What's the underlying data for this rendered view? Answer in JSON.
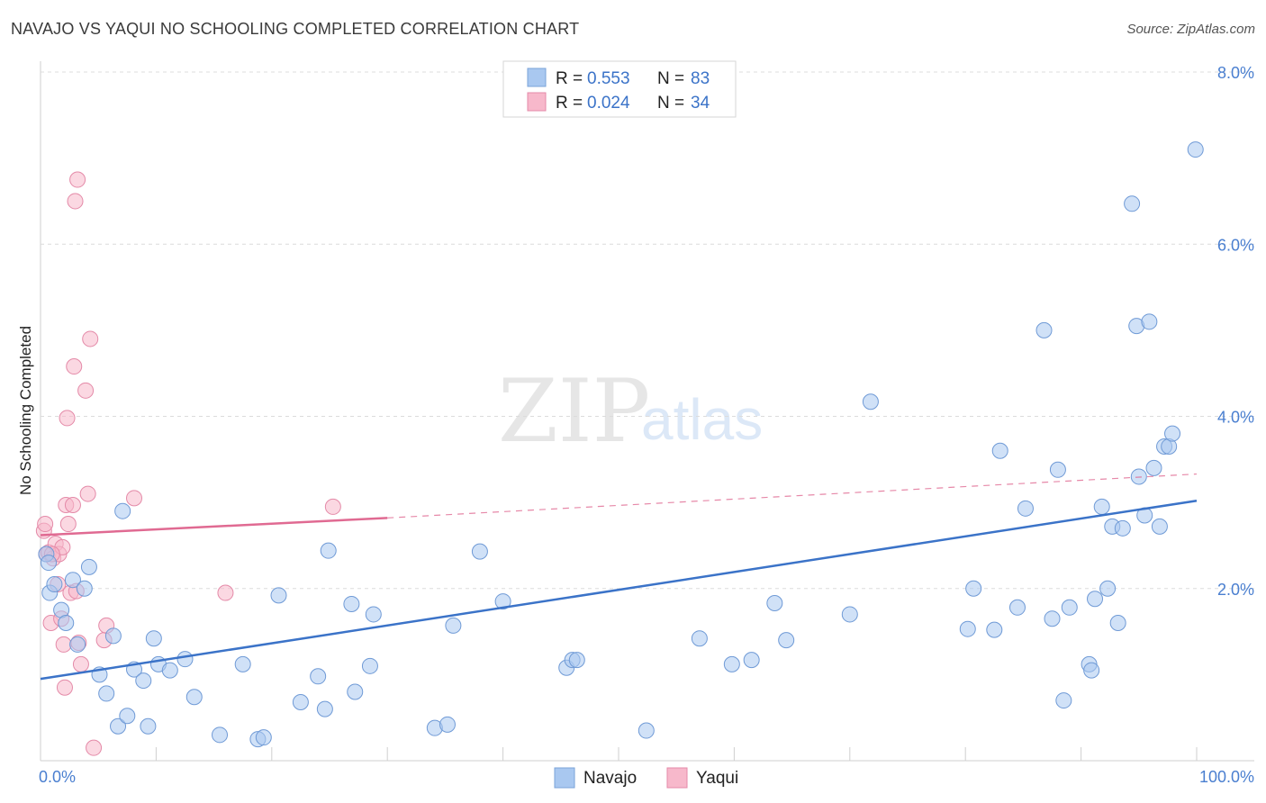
{
  "header": {
    "title": "NAVAJO VS YAQUI NO SCHOOLING COMPLETED CORRELATION CHART",
    "source": "Source: ZipAtlas.com"
  },
  "watermark": {
    "part1": "ZIP",
    "part2": "atlas"
  },
  "legend_top": {
    "rows": [
      {
        "r_label": "R = ",
        "r_value": "0.553",
        "n_label": "N = ",
        "n_value": "83",
        "color": "#a9c8f0"
      },
      {
        "r_label": "R = ",
        "r_value": "0.024",
        "n_label": "N = ",
        "n_value": "34",
        "color": "#f7b8cb"
      }
    ]
  },
  "legend_bottom": {
    "items": [
      "Navajo",
      "Yaqui"
    ]
  },
  "chart_data": {
    "type": "scatter",
    "title": "NAVAJO VS YAQUI NO SCHOOLING COMPLETED CORRELATION CHART",
    "xlabel": "",
    "ylabel": "No Schooling Completed",
    "xlim": [
      0,
      100
    ],
    "ylim": [
      0,
      8.0
    ],
    "x_tick_labels": {
      "left": "0.0%",
      "right": "100.0%"
    },
    "y_ticks": [
      2.0,
      4.0,
      6.0,
      8.0
    ],
    "y_tick_labels": [
      "2.0%",
      "4.0%",
      "6.0%",
      "8.0%"
    ],
    "grid": "horizontal dashed",
    "legend_position": "top-center",
    "colors": {
      "navajo": "#3b73c8",
      "navajo_fill": "#a9c8f0",
      "yaqui": "#e06a92",
      "yaqui_fill": "#f7b8cb"
    },
    "series": [
      {
        "name": "Navajo",
        "trend": {
          "x": [
            0,
            100
          ],
          "y": [
            0.95,
            3.02
          ]
        },
        "points": [
          [
            0.5,
            2.4
          ],
          [
            0.7,
            2.3
          ],
          [
            0.8,
            1.95
          ],
          [
            1.2,
            2.05
          ],
          [
            1.8,
            1.75
          ],
          [
            2.2,
            1.6
          ],
          [
            2.8,
            2.1
          ],
          [
            3.2,
            1.35
          ],
          [
            3.8,
            2.0
          ],
          [
            4.2,
            2.25
          ],
          [
            5.1,
            1.0
          ],
          [
            5.7,
            0.78
          ],
          [
            6.3,
            1.45
          ],
          [
            6.7,
            0.4
          ],
          [
            7.1,
            2.9
          ],
          [
            7.5,
            0.52
          ],
          [
            8.1,
            1.06
          ],
          [
            8.9,
            0.93
          ],
          [
            9.3,
            0.4
          ],
          [
            9.8,
            1.42
          ],
          [
            10.2,
            1.12
          ],
          [
            11.2,
            1.05
          ],
          [
            12.5,
            1.18
          ],
          [
            13.3,
            0.74
          ],
          [
            15.5,
            0.3
          ],
          [
            17.5,
            1.12
          ],
          [
            18.8,
            0.25
          ],
          [
            19.3,
            0.27
          ],
          [
            20.6,
            1.92
          ],
          [
            22.5,
            0.68
          ],
          [
            24.0,
            0.98
          ],
          [
            24.6,
            0.6
          ],
          [
            24.9,
            2.44
          ],
          [
            26.9,
            1.82
          ],
          [
            27.2,
            0.8
          ],
          [
            28.5,
            1.1
          ],
          [
            28.8,
            1.7
          ],
          [
            34.1,
            0.38
          ],
          [
            35.2,
            0.42
          ],
          [
            35.7,
            1.57
          ],
          [
            38.0,
            2.43
          ],
          [
            40.0,
            1.85
          ],
          [
            45.5,
            1.08
          ],
          [
            46.0,
            1.17
          ],
          [
            46.4,
            1.17
          ],
          [
            52.4,
            0.35
          ],
          [
            57.0,
            1.42
          ],
          [
            59.8,
            1.12
          ],
          [
            61.5,
            1.17
          ],
          [
            63.5,
            1.83
          ],
          [
            64.5,
            1.4
          ],
          [
            70.0,
            1.7
          ],
          [
            80.2,
            1.53
          ],
          [
            80.7,
            2.0
          ],
          [
            82.5,
            1.52
          ],
          [
            83.0,
            3.6
          ],
          [
            84.5,
            1.78
          ],
          [
            85.2,
            2.93
          ],
          [
            87.5,
            1.65
          ],
          [
            88.0,
            3.38
          ],
          [
            88.5,
            0.7
          ],
          [
            89.0,
            1.78
          ],
          [
            90.7,
            1.12
          ],
          [
            90.9,
            1.05
          ],
          [
            91.2,
            1.88
          ],
          [
            91.8,
            2.95
          ],
          [
            92.3,
            2.0
          ],
          [
            92.7,
            2.72
          ],
          [
            93.2,
            1.6
          ],
          [
            93.6,
            2.7
          ],
          [
            95.0,
            3.3
          ],
          [
            95.5,
            2.85
          ],
          [
            96.3,
            3.4
          ],
          [
            96.8,
            2.72
          ],
          [
            97.2,
            3.65
          ],
          [
            97.6,
            3.65
          ],
          [
            97.9,
            3.8
          ],
          [
            99.9,
            7.1
          ],
          [
            94.4,
            6.47
          ],
          [
            86.8,
            5.0
          ],
          [
            94.8,
            5.05
          ],
          [
            95.9,
            5.1
          ],
          [
            71.8,
            4.17
          ]
        ]
      },
      {
        "name": "Yaqui",
        "trend": {
          "x": [
            0,
            30
          ],
          "y": [
            2.62,
            2.82
          ],
          "dashed_to": [
            100,
            3.33
          ]
        },
        "points": [
          [
            0.3,
            2.67
          ],
          [
            0.4,
            2.75
          ],
          [
            0.5,
            2.4
          ],
          [
            0.7,
            2.42
          ],
          [
            0.9,
            1.6
          ],
          [
            1.1,
            2.35
          ],
          [
            1.3,
            2.52
          ],
          [
            1.5,
            2.05
          ],
          [
            1.6,
            2.4
          ],
          [
            1.8,
            1.65
          ],
          [
            1.9,
            2.48
          ],
          [
            2.0,
            1.35
          ],
          [
            2.1,
            0.85
          ],
          [
            2.2,
            2.97
          ],
          [
            2.3,
            3.98
          ],
          [
            2.4,
            2.75
          ],
          [
            2.6,
            1.95
          ],
          [
            2.8,
            2.97
          ],
          [
            2.9,
            4.58
          ],
          [
            3.0,
            6.5
          ],
          [
            3.1,
            1.97
          ],
          [
            3.2,
            6.75
          ],
          [
            3.3,
            1.37
          ],
          [
            3.5,
            1.12
          ],
          [
            3.9,
            4.3
          ],
          [
            4.1,
            3.1
          ],
          [
            4.3,
            4.9
          ],
          [
            4.6,
            0.15
          ],
          [
            5.5,
            1.4
          ],
          [
            5.7,
            1.57
          ],
          [
            8.1,
            3.05
          ],
          [
            16.0,
            1.95
          ],
          [
            25.3,
            2.95
          ],
          [
            1.0,
            2.4
          ]
        ]
      }
    ]
  }
}
